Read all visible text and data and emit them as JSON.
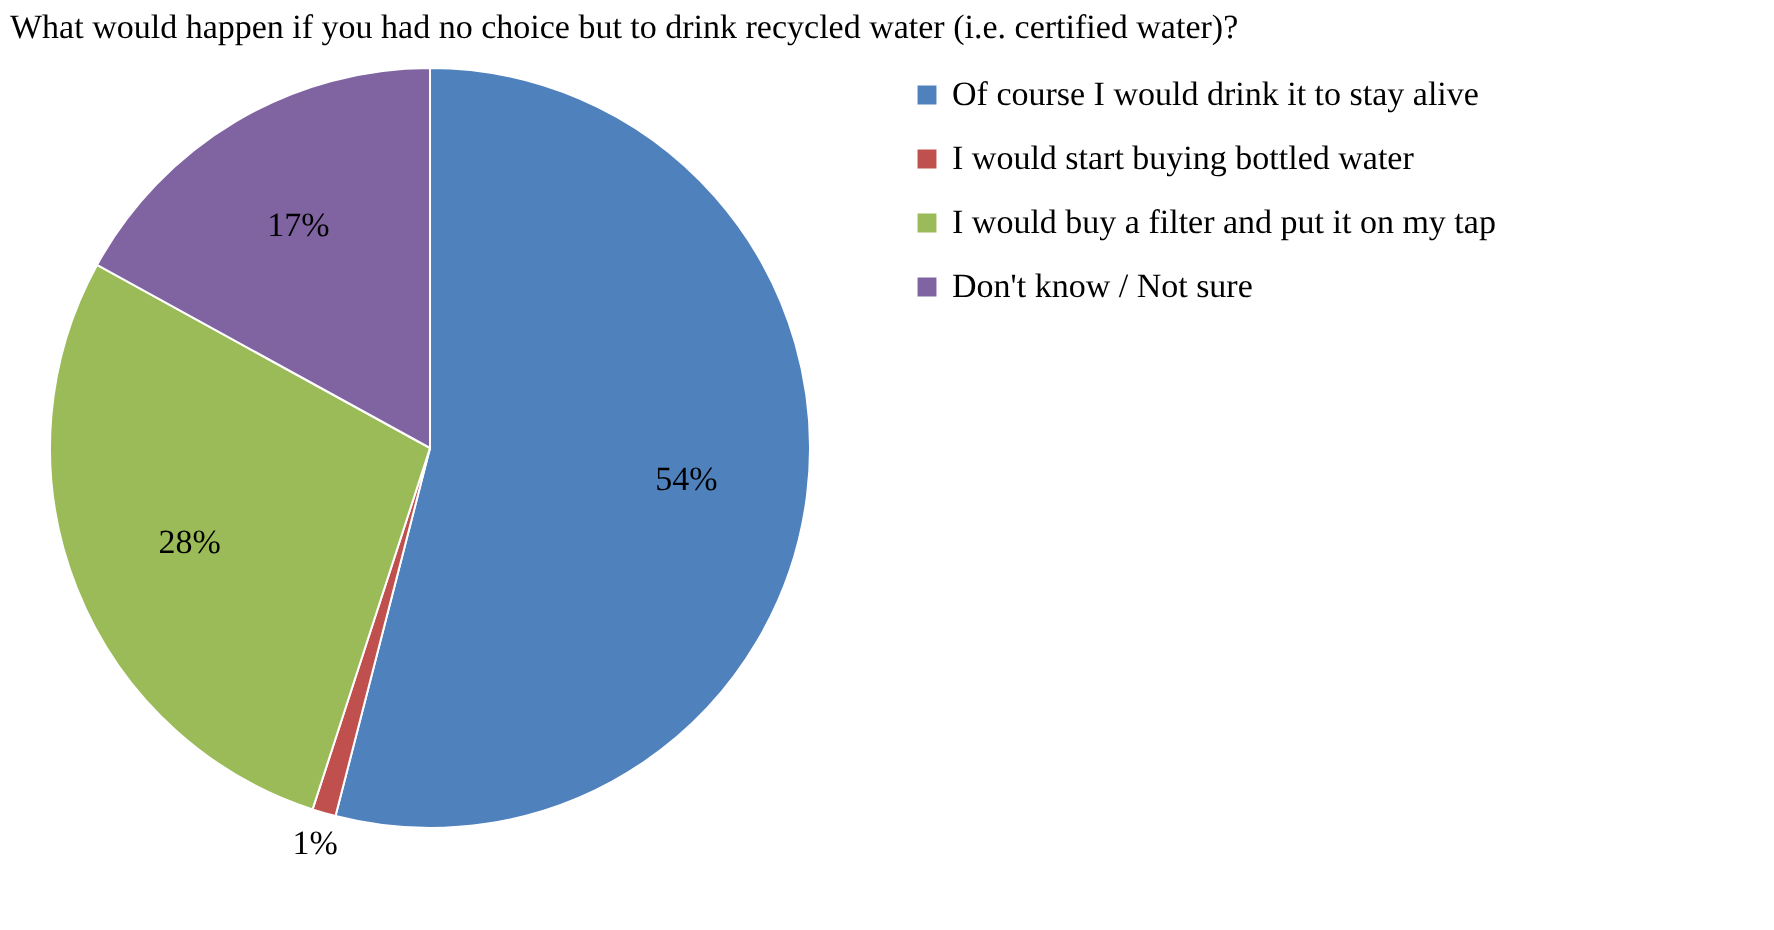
{
  "chart_data": {
    "type": "pie",
    "title": "What would happen if you had no choice but to drink recycled water  (i.e. certified  water)?",
    "categories": [
      "Of course I would drink it to stay alive",
      "I would start buying bottled water",
      "I would buy a filter and put it on my tap",
      "Don't know / Not sure"
    ],
    "values": [
      54,
      1,
      28,
      17
    ],
    "colors": [
      "#4f81bd",
      "#c0504d",
      "#9bbb59",
      "#8064a2"
    ],
    "value_labels": [
      "54%",
      "1%",
      "28%",
      "17%"
    ],
    "legend": "right"
  }
}
